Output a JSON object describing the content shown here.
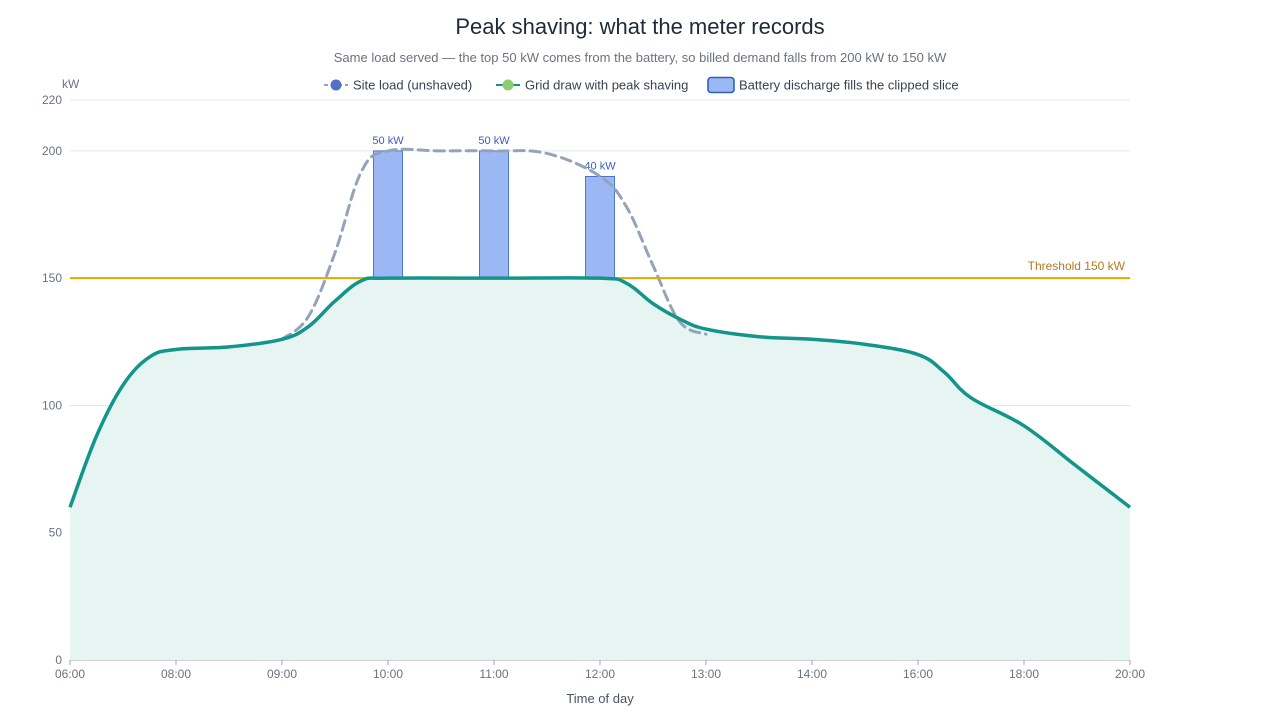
{
  "chart_data": {
    "type": "line",
    "title": "Peak shaving: what the meter records",
    "subtitle": "Same load served — the top 50 kW comes from the battery, so billed demand falls from 200 kW to 150 kW",
    "xlabel": "Time of day",
    "ylabel": "kW",
    "ylim": [
      0,
      220
    ],
    "y_ticks": [
      0,
      50,
      100,
      150,
      200,
      220
    ],
    "x_ticks": [
      "06:00",
      "08:00",
      "09:00",
      "10:00",
      "11:00",
      "12:00",
      "13:00",
      "14:00",
      "16:00",
      "18:00",
      "20:00"
    ],
    "grid": "horizontal",
    "legend_position": "top-center",
    "threshold": {
      "value": 150,
      "label": "Threshold 150 kW",
      "color": "#e0a800"
    },
    "series": [
      {
        "name": "Site load (unshaved)",
        "style": "dashed",
        "color": "#94a3b8",
        "marker_color": "#5470c6",
        "points": [
          [
            "09:00",
            126
          ],
          [
            "09:15",
            135
          ],
          [
            "09:30",
            160
          ],
          [
            "09:45",
            192
          ],
          [
            "10:00",
            200
          ],
          [
            "10:30",
            200
          ],
          [
            "11:00",
            200
          ],
          [
            "11:30",
            199
          ],
          [
            "12:00",
            190
          ],
          [
            "12:15",
            178
          ],
          [
            "12:30",
            155
          ],
          [
            "12:45",
            133
          ],
          [
            "13:00",
            128
          ]
        ]
      },
      {
        "name": "Grid draw with peak shaving",
        "style": "solid",
        "color": "#13958a",
        "marker_color": "#91cc75",
        "fill": "#e6f5f2",
        "points": [
          [
            "06:00",
            60
          ],
          [
            "06:30",
            88
          ],
          [
            "07:00",
            108
          ],
          [
            "07:30",
            119
          ],
          [
            "08:00",
            122
          ],
          [
            "08:30",
            123
          ],
          [
            "09:00",
            126
          ],
          [
            "09:15",
            131
          ],
          [
            "09:30",
            141
          ],
          [
            "09:45",
            149
          ],
          [
            "10:00",
            150
          ],
          [
            "11:00",
            150
          ],
          [
            "12:00",
            150
          ],
          [
            "12:15",
            148
          ],
          [
            "12:30",
            140
          ],
          [
            "12:45",
            134
          ],
          [
            "13:00",
            130
          ],
          [
            "13:30",
            127
          ],
          [
            "14:00",
            126
          ],
          [
            "15:00",
            124
          ],
          [
            "16:00",
            120
          ],
          [
            "16:30",
            113
          ],
          [
            "17:00",
            103
          ],
          [
            "18:00",
            92
          ],
          [
            "19:00",
            76
          ],
          [
            "20:00",
            60
          ]
        ]
      },
      {
        "name": "Battery discharge fills the clipped slice",
        "type": "bar",
        "color": "#9bb8f5",
        "border_color": "#2f5fbf",
        "base": 150,
        "bars": [
          {
            "x": "10:00",
            "value": 50,
            "label": "50 kW"
          },
          {
            "x": "11:00",
            "value": 50,
            "label": "50 kW"
          },
          {
            "x": "12:00",
            "value": 40,
            "label": "40 kW"
          }
        ]
      }
    ]
  }
}
